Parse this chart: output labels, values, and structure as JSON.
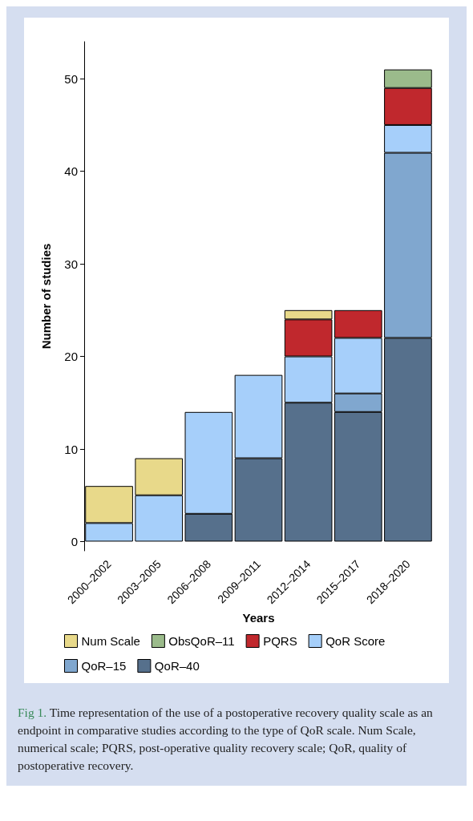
{
  "chart_data": {
    "type": "bar",
    "stacked": true,
    "xlabel": "Years",
    "ylabel": "Number of studies",
    "categories": [
      "2000–2002",
      "2003–2005",
      "2006–2008",
      "2009–2011",
      "2012–2014",
      "2015–2017",
      "2018–2020"
    ],
    "series": [
      {
        "name": "QoR–40",
        "color": "#56708c",
        "values": [
          null,
          null,
          3,
          9,
          15,
          14,
          22
        ]
      },
      {
        "name": "QoR–15",
        "color": "#80a7cf",
        "values": [
          null,
          null,
          null,
          null,
          null,
          2,
          20
        ]
      },
      {
        "name": "QoR Score",
        "color": "#a6cffa",
        "values": [
          2,
          5,
          11,
          9,
          5,
          6,
          3
        ]
      },
      {
        "name": "PQRS",
        "color": "#c0282d",
        "values": [
          null,
          null,
          null,
          null,
          4,
          3,
          4
        ]
      },
      {
        "name": "ObsQoR–11",
        "color": "#9bbb8b",
        "values": [
          null,
          null,
          null,
          null,
          null,
          null,
          2
        ]
      },
      {
        "name": "Num Scale",
        "color": "#e8d98a",
        "values": [
          4,
          4,
          null,
          null,
          1,
          null,
          null
        ]
      }
    ],
    "ylim": [
      -1,
      54
    ],
    "yticks": [
      0,
      10,
      20,
      30,
      40,
      50
    ],
    "grid": false,
    "legend": "bottom",
    "annotations": [
      "Fig 1.",
      "Time representation of the use of a postoperative recovery quality scale as an endpoint in comparative studies according to the type of QoR scale. Num Scale, numerical scale; PQRS, post-operative quality recovery scale; QoR, quality of postoperative recovery."
    ]
  }
}
